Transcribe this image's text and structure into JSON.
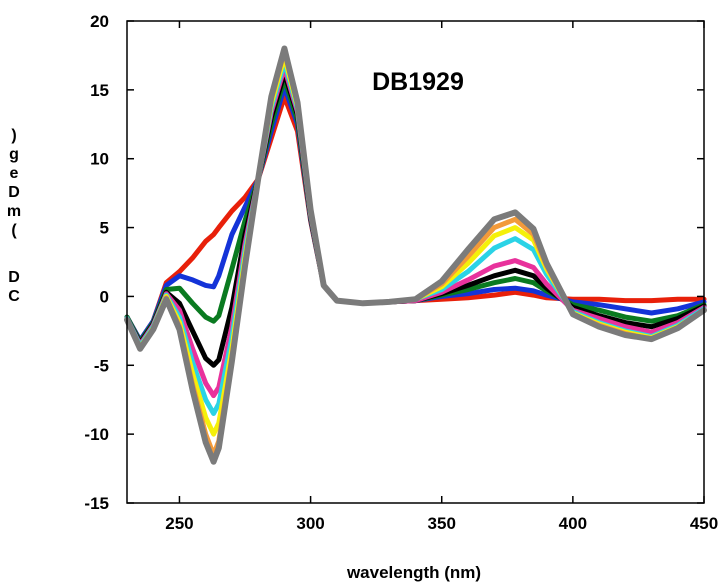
{
  "chart_data": {
    "type": "line",
    "title": "",
    "annotation": "DB1929",
    "xlabel": "wavelength (nm)",
    "ylabel": ")geDm( DC",
    "xlim": [
      230,
      450
    ],
    "ylim": [
      -15,
      20
    ],
    "xticks": [
      250,
      300,
      350,
      400,
      450
    ],
    "yticks": [
      -15,
      -10,
      -5,
      0,
      5,
      10,
      15,
      20
    ],
    "grid": false,
    "legend": "none",
    "x": [
      230,
      235,
      240,
      245,
      250,
      255,
      260,
      263,
      265,
      270,
      275,
      280,
      285,
      290,
      295,
      300,
      305,
      310,
      320,
      330,
      340,
      350,
      360,
      370,
      378,
      385,
      390,
      400,
      410,
      420,
      430,
      440,
      450
    ],
    "series": [
      {
        "color": "#e8200a",
        "values": [
          -1.5,
          -3.2,
          -1.8,
          1.0,
          1.8,
          2.8,
          4.0,
          4.5,
          5.0,
          6.2,
          7.2,
          8.5,
          11.5,
          14.5,
          12.0,
          5.5,
          0.8,
          -0.3,
          -0.5,
          -0.4,
          -0.3,
          -0.2,
          -0.1,
          0.1,
          0.3,
          0.1,
          -0.1,
          -0.2,
          -0.2,
          -0.3,
          -0.3,
          -0.2,
          -0.2
        ]
      },
      {
        "color": "#1433d8",
        "values": [
          -1.5,
          -3.2,
          -1.8,
          0.8,
          1.5,
          1.2,
          0.8,
          0.7,
          1.5,
          4.5,
          6.5,
          8.5,
          12.0,
          15.2,
          12.5,
          5.6,
          0.8,
          -0.3,
          -0.5,
          -0.4,
          -0.3,
          0.0,
          0.2,
          0.5,
          0.6,
          0.4,
          0.1,
          -0.4,
          -0.6,
          -0.9,
          -1.2,
          -0.9,
          -0.4
        ]
      },
      {
        "color": "#0a7a20",
        "values": [
          -1.5,
          -3.3,
          -1.9,
          0.5,
          0.6,
          -0.5,
          -1.5,
          -1.8,
          -1.4,
          2.0,
          5.5,
          8.5,
          12.5,
          15.8,
          12.8,
          5.7,
          0.8,
          -0.3,
          -0.5,
          -0.4,
          -0.3,
          0.1,
          0.5,
          1.0,
          1.3,
          1.0,
          0.4,
          -0.6,
          -1.0,
          -1.5,
          -1.8,
          -1.4,
          -0.6
        ]
      },
      {
        "color": "#000000",
        "values": [
          -1.6,
          -3.4,
          -2.0,
          0.3,
          -0.5,
          -2.5,
          -4.5,
          -5.0,
          -4.6,
          -0.8,
          4.5,
          8.5,
          13.0,
          16.2,
          13.2,
          5.8,
          0.8,
          -0.3,
          -0.5,
          -0.4,
          -0.3,
          0.2,
          0.8,
          1.5,
          1.9,
          1.5,
          0.6,
          -0.8,
          -1.4,
          -1.9,
          -2.2,
          -1.6,
          -0.7
        ]
      },
      {
        "color": "#e8329c",
        "values": [
          -1.6,
          -3.5,
          -2.1,
          0.2,
          -1.0,
          -3.8,
          -6.3,
          -7.2,
          -6.6,
          -2.2,
          3.8,
          8.5,
          13.4,
          16.6,
          13.4,
          5.9,
          0.8,
          -0.3,
          -0.5,
          -0.4,
          -0.3,
          0.3,
          1.2,
          2.2,
          2.6,
          2.1,
          0.9,
          -1.0,
          -1.6,
          -2.2,
          -2.6,
          -1.9,
          -0.8
        ]
      },
      {
        "color": "#2ad3e6",
        "values": [
          -1.6,
          -3.6,
          -2.2,
          0.1,
          -1.5,
          -4.8,
          -7.5,
          -8.5,
          -7.8,
          -3.0,
          3.3,
          8.5,
          13.7,
          17.0,
          13.6,
          6.0,
          0.8,
          -0.3,
          -0.5,
          -0.4,
          -0.2,
          0.5,
          1.8,
          3.5,
          4.2,
          3.4,
          1.6,
          -1.1,
          -1.9,
          -2.5,
          -2.9,
          -2.1,
          -0.9
        ]
      },
      {
        "color": "#f5f00a",
        "values": [
          -1.7,
          -3.7,
          -2.3,
          0.0,
          -1.9,
          -5.6,
          -8.8,
          -10.0,
          -9.2,
          -3.8,
          2.8,
          8.5,
          14.0,
          17.4,
          13.8,
          6.1,
          0.8,
          -0.3,
          -0.5,
          -0.4,
          -0.2,
          0.7,
          2.4,
          4.4,
          5.0,
          4.1,
          2.0,
          -1.2,
          -2.0,
          -2.6,
          -3.0,
          -2.2,
          -1.0
        ]
      },
      {
        "color": "#f29a3a",
        "values": [
          -1.7,
          -3.8,
          -2.4,
          -0.1,
          -2.2,
          -6.4,
          -10.0,
          -11.5,
          -10.5,
          -4.4,
          2.4,
          8.5,
          14.3,
          17.8,
          14.0,
          6.2,
          0.8,
          -0.3,
          -0.5,
          -0.4,
          -0.2,
          0.9,
          2.9,
          5.0,
          5.6,
          4.5,
          2.2,
          -1.3,
          -2.1,
          -2.7,
          -3.1,
          -2.3,
          -1.0
        ]
      },
      {
        "color": "#7b7b7b",
        "values": [
          -1.7,
          -3.8,
          -2.4,
          -0.2,
          -2.4,
          -6.8,
          -10.6,
          -12.0,
          -11.0,
          -4.7,
          2.2,
          8.5,
          14.5,
          18.0,
          14.1,
          6.3,
          0.8,
          -0.3,
          -0.5,
          -0.4,
          -0.2,
          1.1,
          3.4,
          5.6,
          6.1,
          4.9,
          2.4,
          -1.3,
          -2.2,
          -2.8,
          -3.1,
          -2.3,
          -1.0
        ]
      }
    ]
  }
}
